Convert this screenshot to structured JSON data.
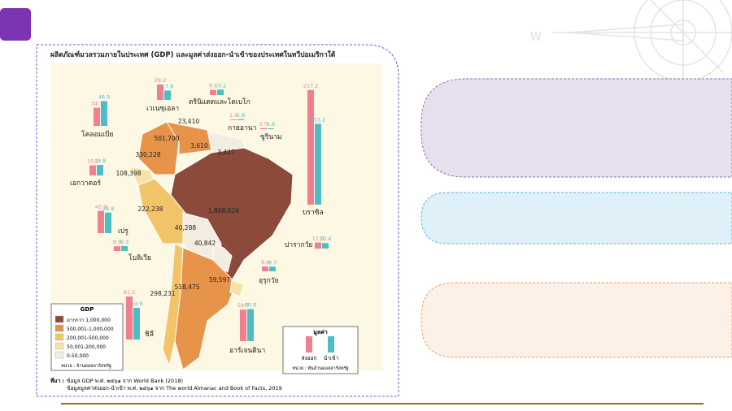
{
  "title": "ผลิตภัณฑ์มวลรวมภายในประเทศ (GDP) และมูลค่าส่งออก-นำเข้าของประเทศในทวีปอเมริกาใต้",
  "countries": [
    {
      "name": "โคลอมเบีย",
      "gdp": "330,228",
      "export": "34.3",
      "import": "46.9"
    },
    {
      "name": "เวเนซุเอลา",
      "gdp": "501,700",
      "export": "29.2",
      "import": "17.8"
    },
    {
      "name": "ตรินิแดดและโตเบโก",
      "gdp": "23,410",
      "export": "9.7",
      "import": "10.2"
    },
    {
      "name": "กายอานา",
      "gdp": "3,610",
      "export": "1.4",
      "import": "1.8"
    },
    {
      "name": "ซูรินาม",
      "gdp": "3,427",
      "export": "2.0",
      "import": "1.6"
    },
    {
      "name": "บราซิล",
      "gdp": "1,868,626",
      "export": "217.2",
      "import": "153.2"
    },
    {
      "name": "เอกวาดอร์",
      "gdp": "108,398",
      "export": "19.1",
      "import": "19.8"
    },
    {
      "name": "เปรู",
      "gdp": "222,238",
      "export": "42.3",
      "import": "38.8"
    },
    {
      "name": "โบลิเวีย",
      "gdp": "40,288",
      "export": "8.9",
      "import": "9.3"
    },
    {
      "name": "ปารากวัย",
      "gdp": "40,842",
      "export": "11.5",
      "import": "10.4"
    },
    {
      "name": "อุรุกวัย",
      "gdp": "59,597",
      "export": "9.0",
      "import": "8.7"
    },
    {
      "name": "ชิลี",
      "gdp": "298,231",
      "export": "81.5",
      "import": "59.9"
    },
    {
      "name": "อาร์เจนตินา",
      "gdp": "518,475",
      "export": "59.7",
      "import": "60.8"
    }
  ],
  "gdp_legend": {
    "title": "GDP",
    "items": [
      "มากกว่า 1,000,000",
      "500,001-1,000,000",
      "200,001-500,000",
      "50,001-200,000",
      "0-50,000"
    ],
    "unit": "หน่วย : ล้านดอลลาร์สหรัฐ"
  },
  "trade_legend": {
    "title": "มูลค่า",
    "export": "ส่งออก",
    "import": "นำเข้า",
    "unit": "หน่วย : พันล้านดอลลาร์สหรัฐ"
  },
  "source": {
    "label": "ที่มา :",
    "lines": [
      "ข้อมูล GDP พ.ศ. ๒๕๖๑ จาก World Bank (2018)",
      "ข้อมูลมูลค่าส่งออก-นำเข้า พ.ศ. ๒๕๖๑ จาก The world Almanac and Book of Facts, 2019"
    ]
  }
}
